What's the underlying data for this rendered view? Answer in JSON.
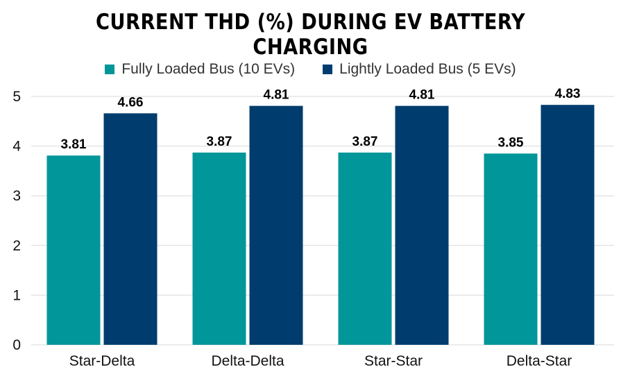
{
  "chart_data": {
    "type": "bar",
    "title": "CURRENT THD (%) DURING EV BATTERY CHARGING",
    "categories": [
      "Star-Delta",
      "Delta-Delta",
      "Star-Star",
      "Delta-Star"
    ],
    "series": [
      {
        "name": "Fully Loaded Bus (10 EVs)",
        "values": [
          3.81,
          3.87,
          3.87,
          3.85
        ],
        "color": "#00969a"
      },
      {
        "name": "Lightly Loaded Bus (5 EVs)",
        "values": [
          4.66,
          4.81,
          4.81,
          4.83
        ],
        "color": "#003d6e"
      }
    ],
    "yticks": [
      "0",
      "1",
      "2",
      "3",
      "4",
      "5"
    ],
    "ylim": [
      0,
      5
    ],
    "grid": true,
    "legend": "top"
  }
}
